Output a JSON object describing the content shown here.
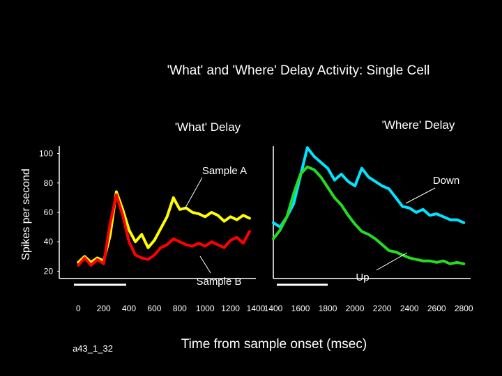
{
  "chart_data": {
    "type": "line",
    "title": "'What' and 'Where' Delay Activity: Single Cell",
    "xlabel": "Time from sample onset (msec)",
    "ylabel": "Spikes per second",
    "ylim": [
      15,
      105
    ],
    "panel_labels": [
      "'What' Delay",
      "'Where' Delay"
    ],
    "y_ticks": [
      100,
      80,
      60,
      40,
      20
    ],
    "x_ticks_left": [
      "0",
      "200",
      "400",
      "600",
      "800",
      "1000",
      "1200",
      "1400"
    ],
    "x_ticks_right": [
      "1400",
      "1600",
      "1800",
      "2000",
      "2200",
      "2400",
      "2600",
      "2800"
    ],
    "cell_id": "a43_1_32",
    "annotations": {
      "sample_a": "Sample A",
      "sample_b": "Sample B",
      "down": "Down",
      "up": "Up"
    },
    "colors": {
      "sample_a": "#ffff00",
      "sample_b": "#ff0000",
      "down": "#00e5ff",
      "up": "#22dd22",
      "annotation_arrow": "#ffffff"
    },
    "series": [
      {
        "name": "Sample A",
        "panel": "what",
        "x": [
          0,
          50,
          100,
          150,
          200,
          250,
          300,
          350,
          400,
          450,
          500,
          550,
          600,
          650,
          700,
          750,
          800,
          850,
          900,
          950,
          1000,
          1050,
          1100,
          1150,
          1200,
          1250,
          1300,
          1350
        ],
        "values": [
          26,
          30,
          26,
          29,
          27,
          44,
          74,
          62,
          48,
          40,
          45,
          36,
          41,
          49,
          57,
          70,
          62,
          63,
          60,
          59,
          57,
          60,
          58,
          54,
          57,
          55,
          58,
          56
        ]
      },
      {
        "name": "Sample B",
        "panel": "what",
        "x": [
          0,
          50,
          100,
          150,
          200,
          250,
          300,
          350,
          400,
          450,
          500,
          550,
          600,
          650,
          700,
          750,
          800,
          850,
          900,
          950,
          1000,
          1050,
          1100,
          1150,
          1200,
          1250,
          1300,
          1350
        ],
        "values": [
          24,
          29,
          24,
          28,
          25,
          52,
          72,
          58,
          40,
          31,
          29,
          28,
          31,
          36,
          38,
          42,
          40,
          38,
          37,
          39,
          37,
          40,
          38,
          36,
          41,
          43,
          39,
          47
        ]
      },
      {
        "name": "Down",
        "panel": "where",
        "x": [
          1400,
          1450,
          1500,
          1550,
          1600,
          1650,
          1700,
          1750,
          1800,
          1850,
          1900,
          1950,
          2000,
          2050,
          2100,
          2150,
          2200,
          2250,
          2300,
          2350,
          2400,
          2450,
          2500,
          2550,
          2600,
          2650,
          2700,
          2750,
          2800
        ],
        "values": [
          53,
          50,
          57,
          66,
          85,
          104,
          98,
          94,
          90,
          82,
          86,
          81,
          78,
          90,
          84,
          81,
          78,
          76,
          70,
          64,
          63,
          60,
          62,
          58,
          59,
          57,
          55,
          55,
          53
        ]
      },
      {
        "name": "Up",
        "panel": "where",
        "x": [
          1400,
          1450,
          1500,
          1550,
          1600,
          1650,
          1700,
          1750,
          1800,
          1850,
          1900,
          1950,
          2000,
          2050,
          2100,
          2150,
          2200,
          2250,
          2300,
          2350,
          2400,
          2450,
          2500,
          2550,
          2600,
          2650,
          2700,
          2750,
          2800
        ],
        "values": [
          42,
          48,
          57,
          73,
          86,
          91,
          89,
          84,
          77,
          70,
          65,
          58,
          52,
          47,
          45,
          42,
          38,
          34,
          33,
          31,
          29,
          28,
          27,
          27,
          26,
          27,
          25,
          26,
          25
        ]
      }
    ]
  }
}
